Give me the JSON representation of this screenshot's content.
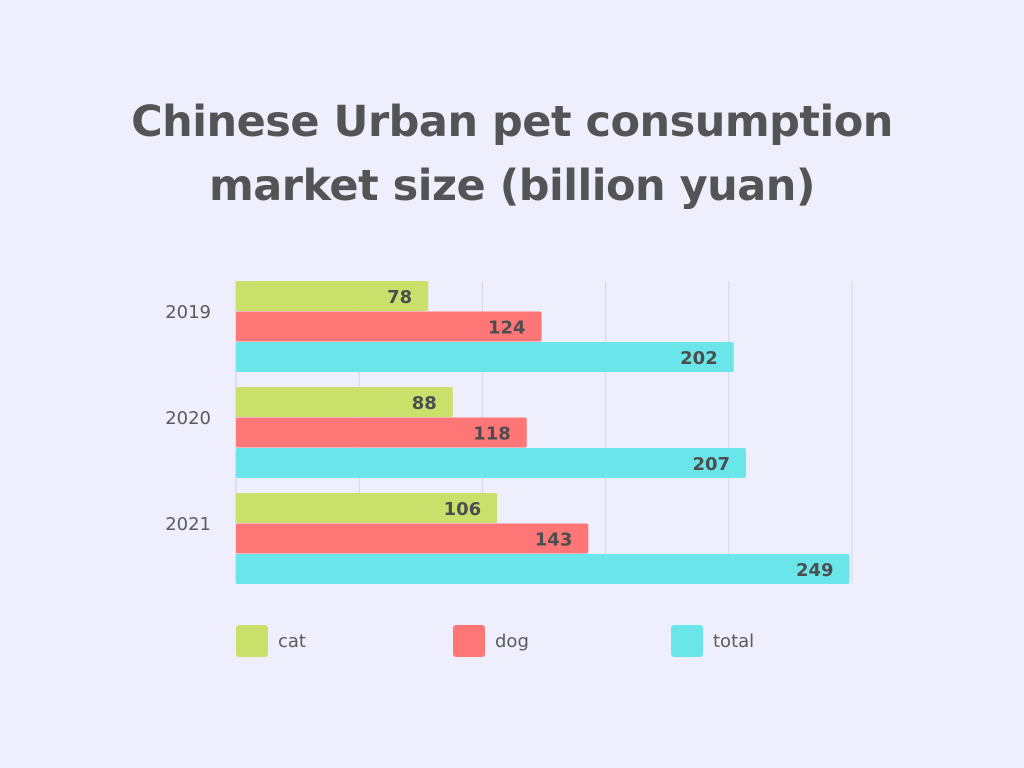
{
  "title_lines": [
    "Chinese Urban pet consumption",
    "market size (billion yuan)"
  ],
  "chart_data": {
    "type": "bar",
    "orientation": "horizontal",
    "title": "Chinese Urban pet consumption market size (billion yuan)",
    "categories": [
      "2019",
      "2020",
      "2021"
    ],
    "series": [
      {
        "name": "cat",
        "values": [
          78,
          88,
          106
        ],
        "color": "#cbe06a"
      },
      {
        "name": "dog",
        "values": [
          124,
          118,
          143
        ],
        "color": "#fe7676"
      },
      {
        "name": "total",
        "values": [
          202,
          207,
          249
        ],
        "color": "#6ae5e9"
      }
    ],
    "xlim": [
      0,
      250
    ],
    "grid": true,
    "legend_position": "bottom"
  }
}
